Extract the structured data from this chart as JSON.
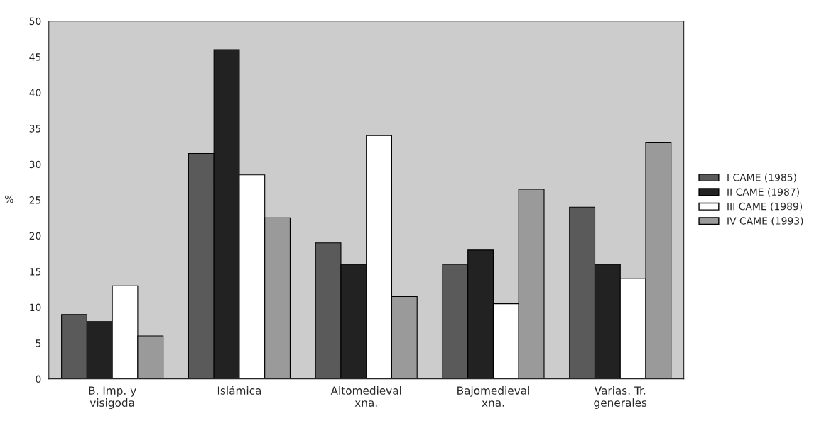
{
  "chart_data": {
    "type": "bar",
    "ylabel": "%",
    "categories": [
      "B. Imp. y\nvisigoda",
      "Islámica",
      "Altomedieval\nxna.",
      "Bajomedieval\nxna.",
      "Varias. Tr.\ngenerales"
    ],
    "series": [
      {
        "name": "I CAME (1985)",
        "color": "#5a5a5a",
        "values": [
          9,
          31.5,
          19,
          16,
          24
        ]
      },
      {
        "name": "II CAME (1987)",
        "color": "#222222",
        "values": [
          8,
          46,
          16,
          18,
          16
        ]
      },
      {
        "name": "III CAME (1989)",
        "color": "#ffffff",
        "values": [
          13,
          28.5,
          34,
          10.5,
          14
        ]
      },
      {
        "name": "IV CAME (1993)",
        "color": "#9a9a9a",
        "values": [
          6,
          22.5,
          11.5,
          26.5,
          33
        ]
      }
    ],
    "ylim": [
      0,
      50
    ],
    "yticks": [
      0,
      5,
      10,
      15,
      20,
      25,
      30,
      35,
      40,
      45,
      50
    ],
    "legend": "right"
  }
}
